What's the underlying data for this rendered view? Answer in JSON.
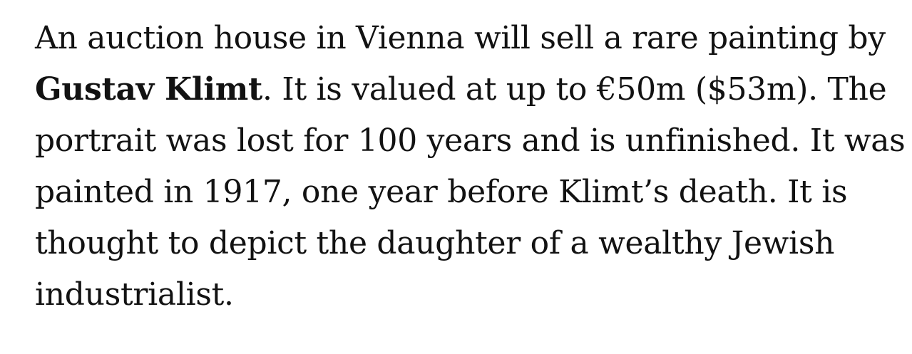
{
  "article": {
    "paragraph": {
      "line1": "An auction house in Vienna will sell a rare painting by",
      "line2_bold": "Gustav Klimt",
      "line2_rest": ". It is valued at up to €50m ($53m). The",
      "line3": "portrait was lost for 100 years and is unfinished. It was",
      "line4": "painted in 1917, one year before Klimt’s death. It is",
      "line5": "thought to depict the daughter of a wealthy Jewish",
      "line6": "industrialist."
    }
  }
}
